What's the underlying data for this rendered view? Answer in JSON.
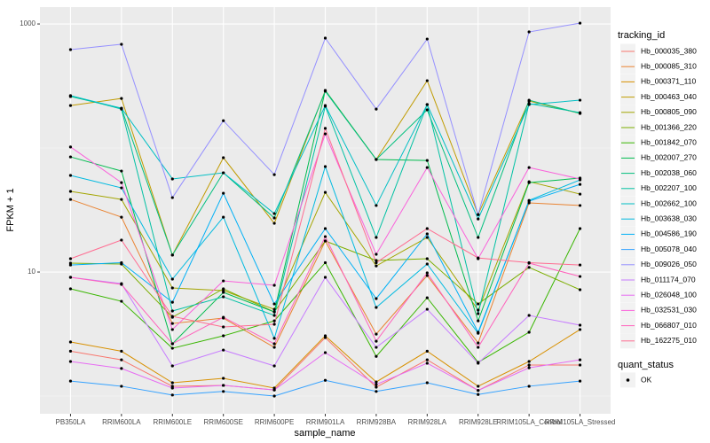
{
  "chart_data": {
    "type": "line",
    "log_y": true,
    "grid": true,
    "legend": "right",
    "x_label": "sample_name",
    "y_label": "FPKM + 1",
    "legend_title": "tracking_id",
    "point_color": "#000000",
    "point_legend_title": "quant_status",
    "point_legend_labels": [
      "OK"
    ],
    "categories": [
      "PB350LA",
      "RRIM600LA",
      "RRIM600LE",
      "RRIM600SE",
      "RRIM600PE",
      "RRIM901LA",
      "RRIM928BA",
      "RRIM928LA",
      "RRIM928LE",
      "RRIM105LA_Control",
      "RRIM105LA_Stressed"
    ],
    "ylim": [
      0.72,
      1368
    ],
    "yticks": [
      10,
      1000
    ],
    "series": [
      {
        "name": "Hb_000035_380",
        "color": "#F8766D",
        "values": [
          2.3,
          1.96,
          1.2,
          1.22,
          1.12,
          2.96,
          1.18,
          1.96,
          1.11,
          1.78,
          1.78
        ]
      },
      {
        "name": "Hb_000085_310",
        "color": "#EA8331",
        "values": [
          38.5,
          27.7,
          3.85,
          4.25,
          2.47,
          17.8,
          3.16,
          9.36,
          2.68,
          36.1,
          34.4
        ]
      },
      {
        "name": "Hb_000371_110",
        "color": "#D89000",
        "values": [
          2.73,
          2.3,
          1.28,
          1.39,
          1.16,
          3.06,
          1.3,
          2.3,
          1.2,
          1.9,
          3.44
        ]
      },
      {
        "name": "Hb_000463_040",
        "color": "#C09B00",
        "values": [
          220,
          251,
          13.7,
          83.5,
          24.7,
          291,
          80.8,
          349,
          29.1,
          239,
          190
        ]
      },
      {
        "name": "Hb_000805_090",
        "color": "#A3A500",
        "values": [
          44.7,
          38.5,
          7.44,
          7.08,
          5.01,
          43.9,
          11.2,
          19,
          4.93,
          53.5,
          42.5
        ]
      },
      {
        "name": "Hb_001366_220",
        "color": "#7CAE00",
        "values": [
          11.8,
          11.6,
          4.32,
          7.32,
          4.77,
          17.8,
          12.4,
          12.8,
          5.53,
          10.9,
          7.2
        ]
      },
      {
        "name": "Hb_001842_070",
        "color": "#39B600",
        "values": [
          7.32,
          5.81,
          2.43,
          3.06,
          4.04,
          11.9,
          2.09,
          6.2,
          1.87,
          3.27,
          22.4
        ]
      },
      {
        "name": "Hb_002007_270",
        "color": "#00BB4E",
        "values": [
          84.8,
          65.2,
          2.64,
          6.85,
          4.77,
          291,
          80.8,
          79.4,
          4.04,
          52.6,
          57.2
        ]
      },
      {
        "name": "Hb_002038_060",
        "color": "#00BF7D",
        "values": [
          260,
          209,
          13.7,
          63.1,
          27.3,
          287,
          80.8,
          203,
          19,
          243,
          190
        ]
      },
      {
        "name": "Hb_002207_100",
        "color": "#00C1A3",
        "values": [
          264,
          206,
          4.85,
          6.31,
          4.47,
          217,
          19,
          224,
          4.62,
          228,
          193
        ]
      },
      {
        "name": "Hb_002662_100",
        "color": "#00BFC4",
        "values": [
          264,
          209,
          56.3,
          63.1,
          29.6,
          220,
          34.4,
          224,
          26.8,
          224,
          243
        ]
      },
      {
        "name": "Hb_003638_030",
        "color": "#00BAE0",
        "values": [
          60.1,
          47.7,
          8.77,
          27.7,
          2.92,
          70.8,
          5.18,
          11.6,
          3.21,
          37.8,
          55.3
        ]
      },
      {
        "name": "Hb_004586_190",
        "color": "#00B0F6",
        "values": [
          11.4,
          11.9,
          5.71,
          43.2,
          5.53,
          22.4,
          6.11,
          20.3,
          3.27,
          37.3,
          50.9
        ]
      },
      {
        "name": "Hb_005078_040",
        "color": "#35A2FF",
        "values": [
          1.32,
          1.2,
          1.02,
          1.09,
          1.0,
          1.34,
          1.09,
          1.28,
          1.03,
          1.2,
          1.32
        ]
      },
      {
        "name": "Hb_009026_050",
        "color": "#9590FF",
        "values": [
          621,
          686,
          39.8,
          166,
          61,
          769,
          206,
          756,
          29,
          863,
          1016
        ]
      },
      {
        "name": "Hb_011174_070",
        "color": "#C77CFF",
        "values": [
          9.06,
          8.07,
          1.75,
          2.35,
          1.75,
          9.06,
          2.47,
          5.01,
          1.84,
          4.47,
          3.73
        ]
      },
      {
        "name": "Hb_026048_100",
        "color": "#E76BF3",
        "values": [
          1.9,
          1.67,
          1.16,
          1.22,
          1.12,
          2.24,
          1.24,
          1.84,
          1.11,
          1.69,
          1.96
        ]
      },
      {
        "name": "Hb_032531_030",
        "color": "#FA62DB",
        "values": [
          102,
          52.6,
          3.44,
          8.48,
          7.82,
          130,
          13.9,
          69.6,
          12.8,
          69.6,
          56.3
        ]
      },
      {
        "name": "Hb_066807_010",
        "color": "#FF62BC",
        "values": [
          9.06,
          7.94,
          2.64,
          4.32,
          2.64,
          19.3,
          2.77,
          9.84,
          2.47,
          11.8,
          9.21
        ]
      },
      {
        "name": "Hb_162275_010",
        "color": "#FF6C91",
        "values": [
          12.8,
          18.1,
          4.39,
          3.61,
          3.79,
          144,
          11.9,
          22.4,
          13,
          11.9,
          11.4
        ]
      }
    ]
  }
}
